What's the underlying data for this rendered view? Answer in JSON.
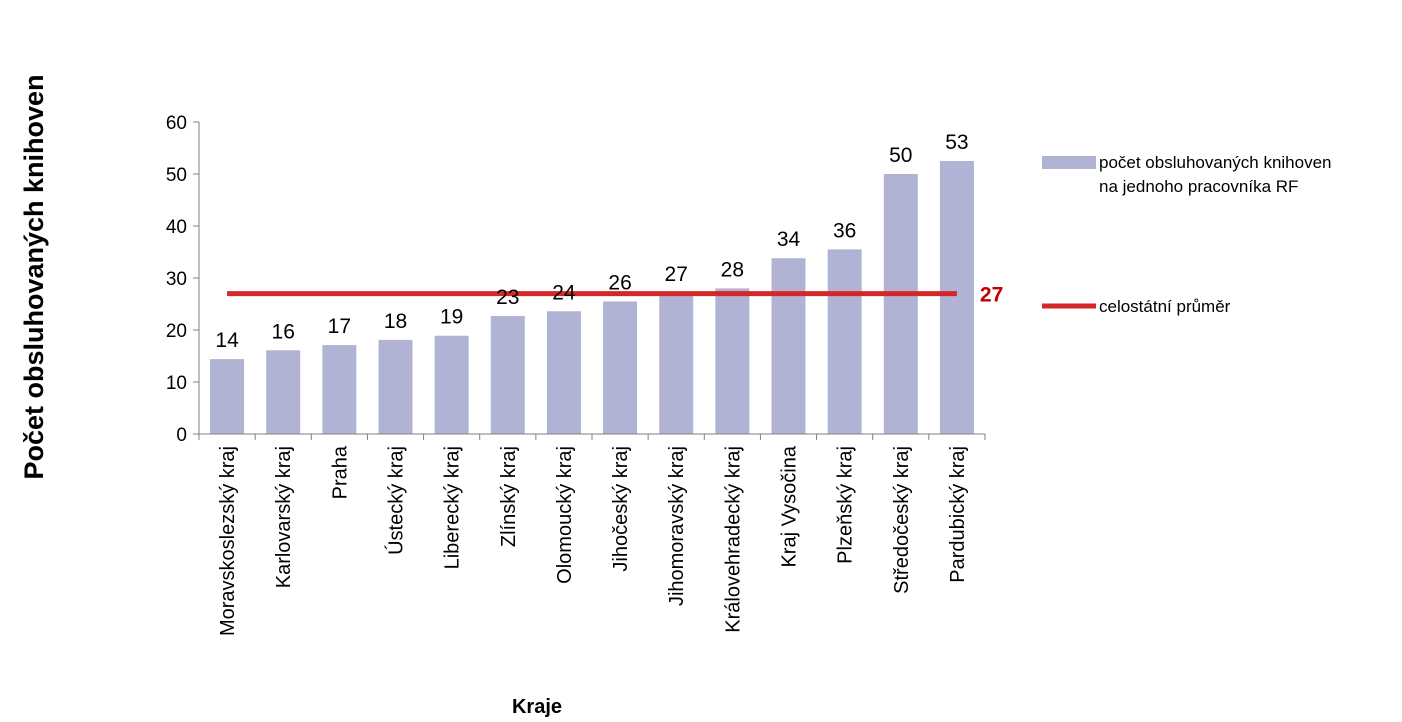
{
  "chart_data": {
    "type": "bar",
    "title": "",
    "xlabel": "Kraje",
    "ylabel": "Počet obsluhovaných knihoven",
    "ylim": [
      0,
      60
    ],
    "yticks": [
      "0",
      "10",
      "20",
      "30",
      "40",
      "50",
      "60"
    ],
    "grid": false,
    "legend_position": "right",
    "categories": [
      "Moravskoslezský kraj",
      "Karlovarský kraj",
      "Praha",
      "Ústecký kraj",
      "Liberecký kraj",
      "Zlínský kraj",
      "Olomoucký kraj",
      "Jihočeský kraj",
      "Jihomoravský kraj",
      "Královehradecký kraj",
      "Kraj Vysočina",
      "Plzeňský kraj",
      "Středočeský kraj",
      "Pardubický kraj"
    ],
    "series": [
      {
        "name": "počet obsluhovaných knihoven na jednoho pracovníka RF",
        "legend_lines": [
          "počet obsluhovaných knihoven",
          "na jednoho pracovníka RF"
        ],
        "type": "bar",
        "color": "#b0b3d4",
        "values": [
          14.4,
          16.1,
          17.1,
          18.1,
          18.9,
          22.7,
          23.6,
          25.5,
          27.1,
          28.0,
          33.8,
          35.5,
          50.0,
          52.5
        ],
        "data_labels": [
          "14",
          "16",
          "17",
          "18",
          "19",
          "23",
          "24",
          "26",
          "27",
          "28",
          "34",
          "36",
          "50",
          "53"
        ]
      },
      {
        "name": "celostátní průměr",
        "type": "line",
        "color": "#d62728",
        "value": 27,
        "value_label": "27",
        "label_color": "#c00000"
      }
    ]
  }
}
